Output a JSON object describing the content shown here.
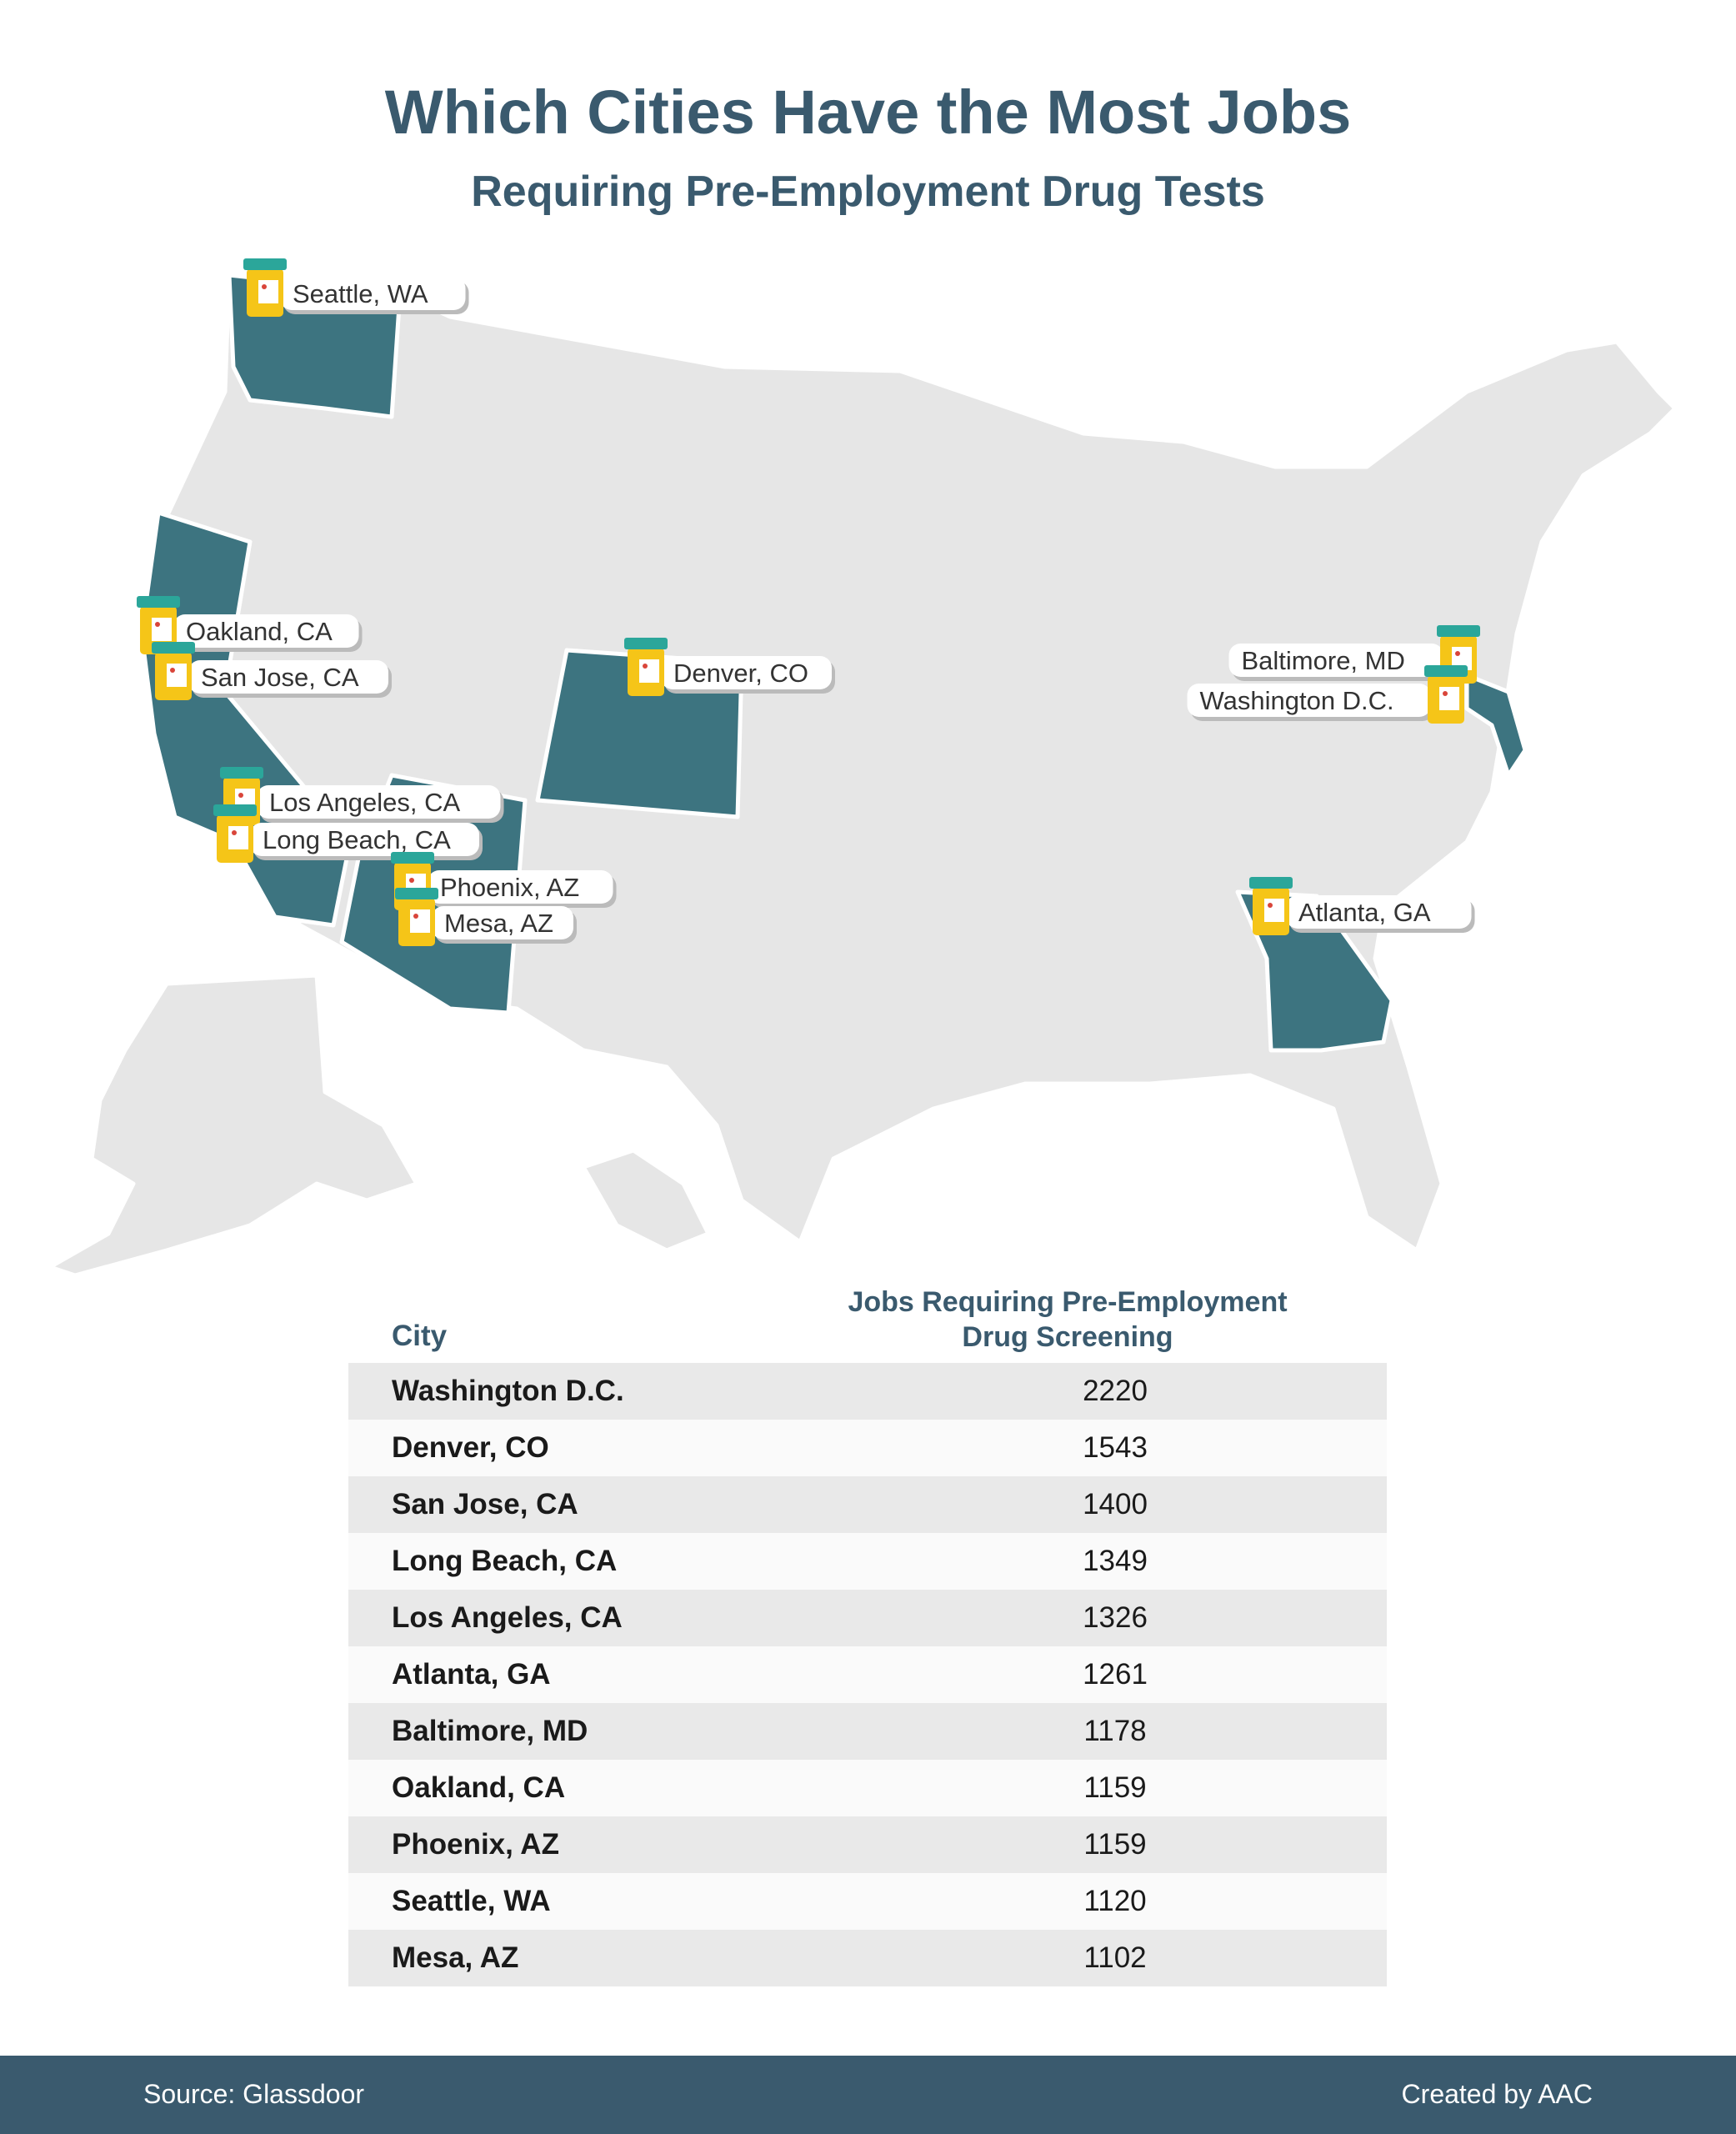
{
  "header": {
    "title": "Which Cities Have the Most Jobs",
    "subtitle": "Requiring Pre-Employment Drug Tests"
  },
  "colors": {
    "highlight_state": "#3d7480",
    "other_state": "#e6e6e6",
    "border": "#ffffff",
    "title": "#3a5a6e",
    "pin_body": "#f5c518",
    "pin_cap": "#2ba69a"
  },
  "map": {
    "highlighted_states": [
      "Washington",
      "California",
      "Arizona",
      "Colorado",
      "Georgia",
      "Maryland"
    ],
    "markers": [
      {
        "label": "Seattle, WA"
      },
      {
        "label": "Oakland, CA"
      },
      {
        "label": "San Jose, CA"
      },
      {
        "label": "Denver, CO"
      },
      {
        "label": "Baltimore, MD"
      },
      {
        "label": "Washington D.C."
      },
      {
        "label": "Los Angeles, CA"
      },
      {
        "label": "Long Beach, CA"
      },
      {
        "label": "Phoenix, AZ"
      },
      {
        "label": "Mesa, AZ"
      },
      {
        "label": "Atlanta, GA"
      }
    ]
  },
  "table": {
    "col_city": "City",
    "col_jobs_line1": "Jobs Requiring Pre-Employment",
    "col_jobs_line2": "Drug Screening",
    "rows": [
      {
        "city": "Washington D.C.",
        "jobs": "2220"
      },
      {
        "city": "Denver, CO",
        "jobs": "1543"
      },
      {
        "city": "San Jose, CA",
        "jobs": "1400"
      },
      {
        "city": "Long Beach, CA",
        "jobs": "1349"
      },
      {
        "city": "Los Angeles, CA",
        "jobs": "1326"
      },
      {
        "city": "Atlanta, GA",
        "jobs": "1261"
      },
      {
        "city": "Baltimore, MD",
        "jobs": "1178"
      },
      {
        "city": "Oakland, CA",
        "jobs": "1159"
      },
      {
        "city": "Phoenix, AZ",
        "jobs": "1159"
      },
      {
        "city": "Seattle, WA",
        "jobs": "1120"
      },
      {
        "city": "Mesa, AZ",
        "jobs": "1102"
      }
    ]
  },
  "footer": {
    "source": "Source: Glassdoor",
    "credit": "Created by AAC"
  }
}
